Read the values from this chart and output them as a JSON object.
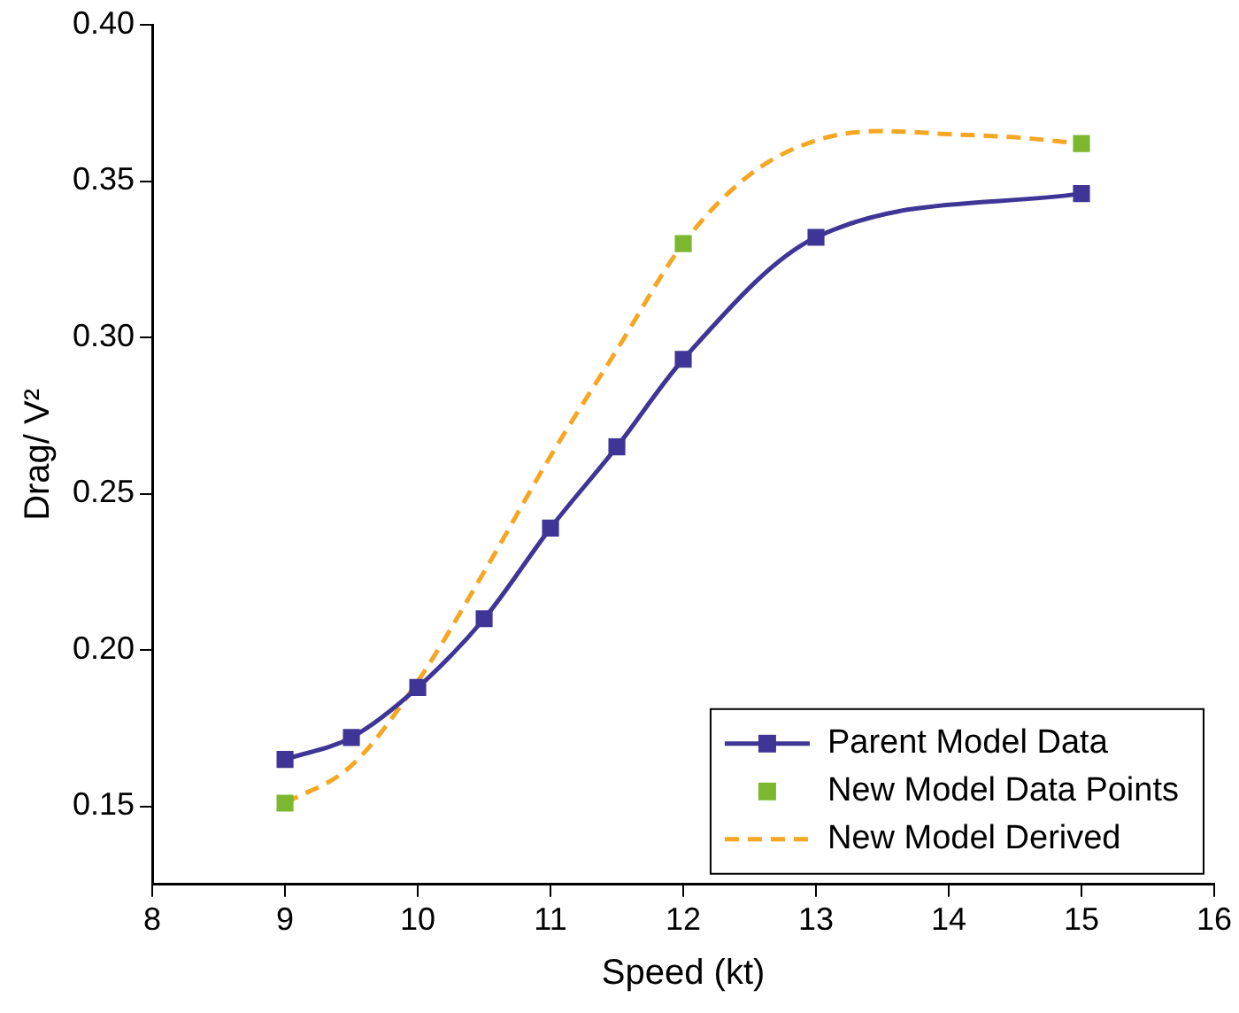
{
  "chart_data": {
    "type": "line",
    "xlabel": "Speed (kt)",
    "ylabel": "Drag/ V²",
    "xlim": [
      8,
      16
    ],
    "xticks": [
      8,
      9,
      10,
      11,
      12,
      13,
      14,
      15,
      16
    ],
    "ylim": [
      0.125,
      0.4
    ],
    "yticks": [
      {
        "value": 0.15,
        "label": "0.15"
      },
      {
        "value": 0.2,
        "label": "0.20"
      },
      {
        "value": 0.25,
        "label": "0.25"
      },
      {
        "value": 0.3,
        "label": "0.30"
      },
      {
        "value": 0.35,
        "label": "0.35"
      },
      {
        "value": 0.4,
        "label": "0.40"
      }
    ],
    "grid": false,
    "legend": "bottom right",
    "series": [
      {
        "name": "Parent Model Data",
        "color": "#3f3596",
        "marker": "square",
        "line_style": "solid",
        "x": [
          9,
          9.5,
          10,
          10.5,
          11,
          11.5,
          12,
          13,
          15
        ],
        "values": [
          0.165,
          0.172,
          0.188,
          0.21,
          0.239,
          0.265,
          0.293,
          0.332,
          0.346
        ]
      },
      {
        "name": "New Model Data Points",
        "type": "scatter",
        "color": "#7cb82f",
        "marker": "square",
        "x": [
          9,
          12,
          15
        ],
        "values": [
          0.151,
          0.33,
          0.362
        ]
      },
      {
        "name": "New Model Derived",
        "color": "#f5a623",
        "marker": "none",
        "line_style": "dashed",
        "x": [
          9,
          9.5,
          10,
          10.5,
          11,
          11.5,
          12,
          12.5,
          13,
          13.5,
          14,
          14.5,
          15
        ],
        "values": [
          0.151,
          0.163,
          0.19,
          0.225,
          0.262,
          0.296,
          0.33,
          0.352,
          0.363,
          0.366,
          0.365,
          0.364,
          0.362
        ]
      }
    ]
  }
}
